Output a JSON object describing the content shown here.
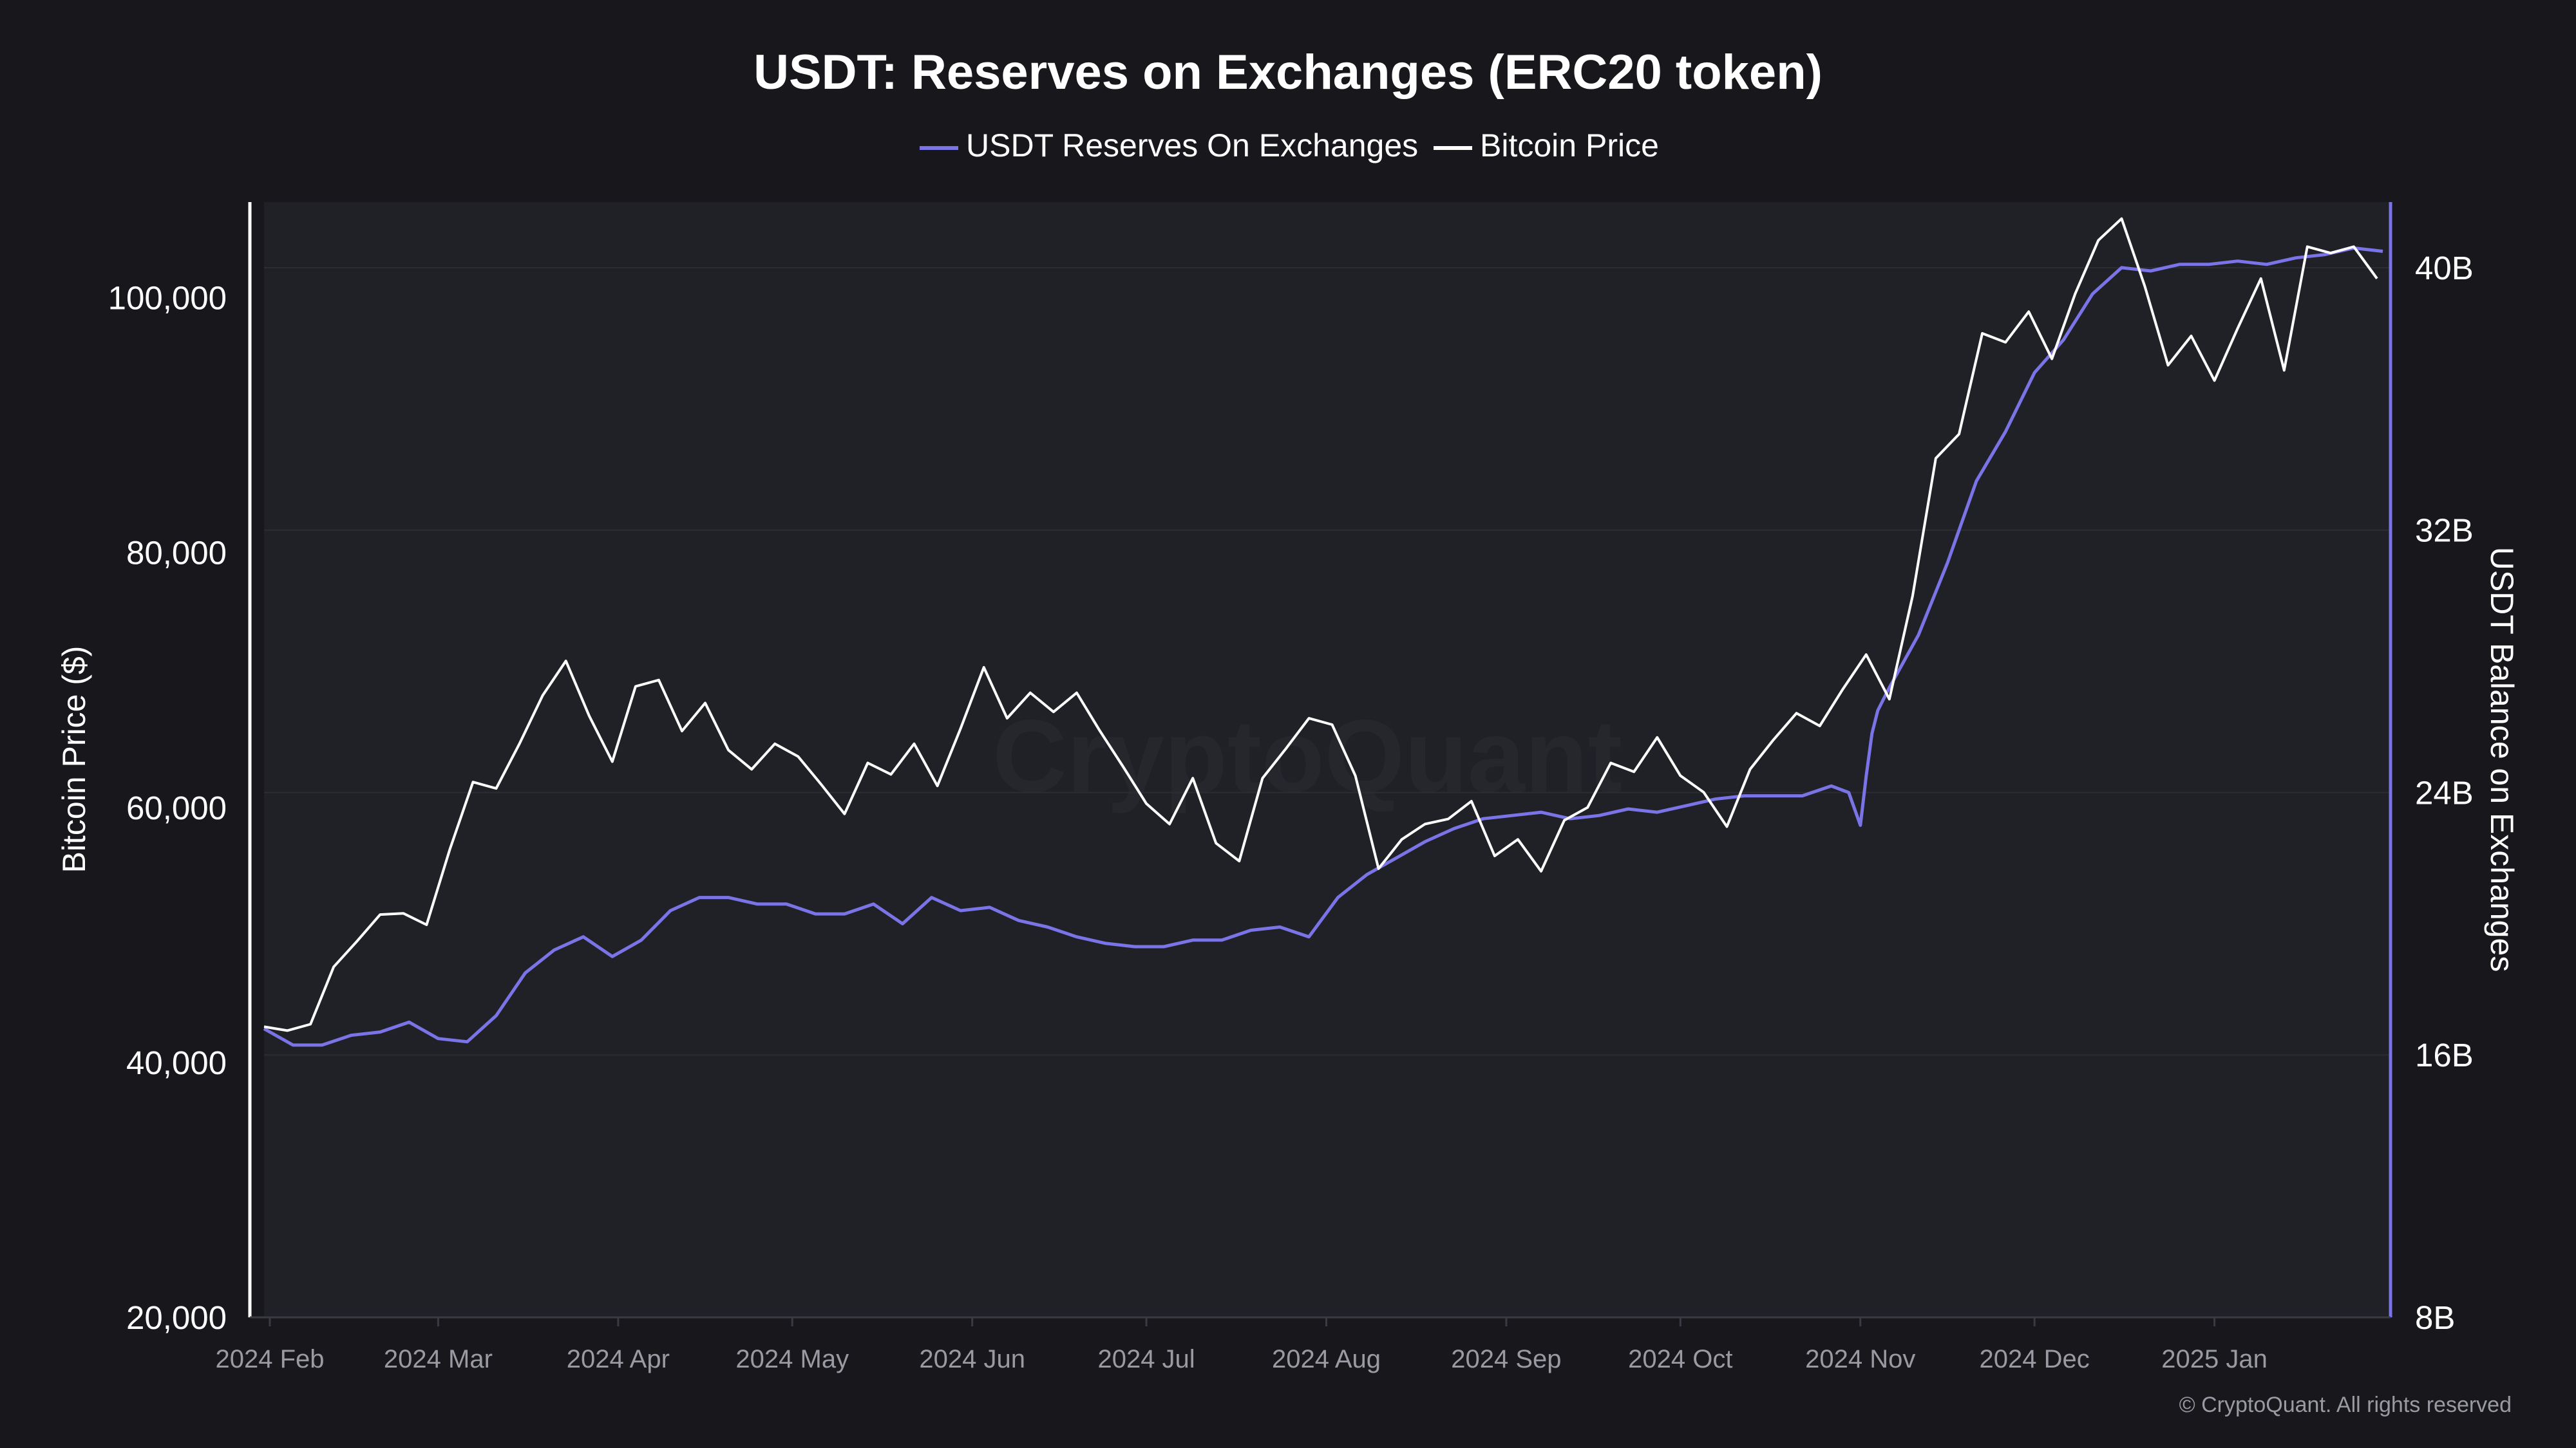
{
  "colors": {
    "background": "#17171c",
    "plot_background": "#202027",
    "reserves_line": "#7b74e6",
    "price_line": "#ffffff",
    "grid": "#2c2c33",
    "tick_x": "#9a9aa3"
  },
  "watermark": "CryptoQuant",
  "copyright": "© CryptoQuant. All rights reserved",
  "chart_data": {
    "type": "line",
    "title": "USDT: Reserves on Exchanges (ERC20 token)",
    "xlabel": "",
    "ylabel_left": "Bitcoin Price ($)",
    "ylabel_right": "USDT Balance on Exchanges",
    "legend_position": "top-center",
    "grid": true,
    "x_tick_labels": [
      "2024 Feb",
      "2024 Mar",
      "2024 Apr",
      "2024 May",
      "2024 Jun",
      "2024 Jul",
      "2024 Aug",
      "2024 Sep",
      "2024 Oct",
      "2024 Nov",
      "2024 Dec",
      "2025 Jan"
    ],
    "x_tick_days": [
      1,
      30,
      61,
      91,
      122,
      152,
      183,
      214,
      244,
      275,
      305,
      336
    ],
    "x_range_days": [
      0,
      365
    ],
    "left_axis": {
      "ticks": [
        "20,000",
        "40,000",
        "60,000",
        "80,000",
        "100,000"
      ],
      "tick_values": [
        20000,
        40000,
        60000,
        80000,
        100000
      ],
      "range": [
        20000,
        107500
      ]
    },
    "right_axis": {
      "ticks": [
        "8B",
        "16B",
        "24B",
        "32B",
        "40B"
      ],
      "tick_values": [
        8,
        16,
        24,
        32,
        40
      ],
      "range": [
        8,
        42
      ],
      "unit": "B"
    },
    "series": [
      {
        "name": "USDT Reserves On Exchanges",
        "axis": "right",
        "x_days": [
          0,
          5,
          10,
          15,
          20,
          25,
          30,
          35,
          40,
          45,
          50,
          55,
          60,
          65,
          70,
          75,
          80,
          85,
          90,
          95,
          100,
          105,
          110,
          115,
          120,
          125,
          130,
          135,
          140,
          145,
          150,
          155,
          160,
          165,
          170,
          175,
          180,
          185,
          190,
          195,
          200,
          205,
          210,
          215,
          220,
          225,
          230,
          235,
          240,
          245,
          250,
          255,
          260,
          265,
          270,
          273,
          275,
          276,
          277,
          278,
          280,
          285,
          290,
          295,
          300,
          305,
          310,
          315,
          320,
          325,
          330,
          335,
          340,
          345,
          350,
          355,
          360,
          365
        ],
        "values": [
          16.8,
          16.3,
          16.3,
          16.6,
          16.7,
          17.0,
          16.5,
          16.4,
          17.2,
          18.5,
          19.2,
          19.6,
          19.0,
          19.5,
          20.4,
          20.8,
          20.8,
          20.6,
          20.6,
          20.3,
          20.3,
          20.6,
          20.0,
          20.8,
          20.4,
          20.5,
          20.1,
          19.9,
          19.6,
          19.4,
          19.3,
          19.3,
          19.5,
          19.5,
          19.8,
          19.9,
          19.6,
          20.8,
          21.5,
          22.0,
          22.5,
          22.9,
          23.2,
          23.3,
          23.4,
          23.2,
          23.3,
          23.5,
          23.4,
          23.6,
          23.8,
          23.9,
          23.9,
          23.9,
          24.2,
          24.0,
          23.0,
          24.5,
          25.8,
          26.5,
          27.2,
          28.8,
          31.0,
          33.5,
          35.0,
          36.8,
          37.8,
          39.2,
          40.0,
          39.9,
          40.1,
          40.1,
          40.2,
          40.1,
          40.3,
          40.4,
          40.6,
          40.5
        ]
      },
      {
        "name": "Bitcoin Price",
        "axis": "left",
        "x_days": [
          0,
          4,
          8,
          12,
          16,
          20,
          24,
          28,
          32,
          36,
          40,
          44,
          48,
          52,
          56,
          60,
          64,
          68,
          72,
          76,
          80,
          84,
          88,
          92,
          96,
          100,
          104,
          108,
          112,
          116,
          120,
          124,
          128,
          132,
          136,
          140,
          144,
          148,
          152,
          156,
          160,
          164,
          168,
          172,
          176,
          180,
          184,
          188,
          192,
          196,
          200,
          204,
          208,
          212,
          216,
          220,
          224,
          228,
          232,
          236,
          240,
          244,
          248,
          252,
          256,
          260,
          264,
          268,
          272,
          276,
          280,
          284,
          288,
          292,
          296,
          300,
          304,
          308,
          312,
          316,
          320,
          324,
          328,
          332,
          336,
          340,
          344,
          348,
          352,
          356,
          360,
          364
        ],
        "values": [
          42800,
          42500,
          43000,
          47500,
          49500,
          51600,
          51700,
          50800,
          56700,
          62000,
          61500,
          65000,
          68800,
          71500,
          67200,
          63600,
          69500,
          70000,
          66000,
          68200,
          64500,
          63000,
          65000,
          64000,
          61800,
          59500,
          63500,
          62600,
          65000,
          61700,
          66200,
          71000,
          67000,
          69000,
          67500,
          69000,
          66000,
          63200,
          60300,
          58700,
          62300,
          57200,
          55800,
          62300,
          64600,
          67000,
          66500,
          62500,
          55200,
          57500,
          58700,
          59100,
          60500,
          56200,
          57500,
          55000,
          59000,
          60000,
          63500,
          62800,
          65500,
          62500,
          61200,
          58500,
          63000,
          65300,
          67400,
          66400,
          69300,
          72000,
          68500,
          76600,
          87400,
          89300,
          97200,
          96500,
          98900,
          95200,
          100300,
          104500,
          106200,
          100900,
          94700,
          97000,
          93500,
          97600,
          101500,
          94300,
          104000,
          103500,
          104000,
          101500
        ]
      }
    ]
  }
}
